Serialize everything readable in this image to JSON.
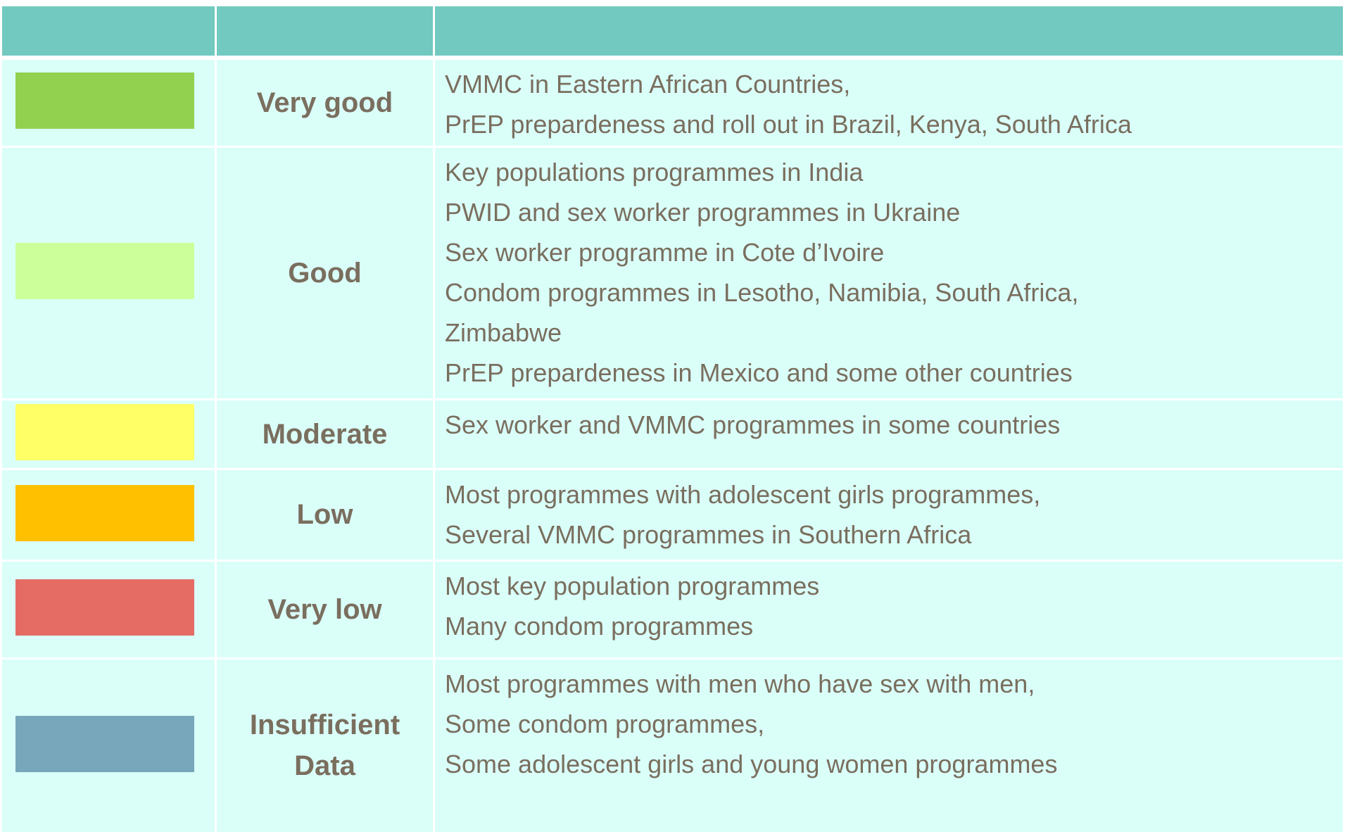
{
  "table": {
    "rows": [
      {
        "color": "#92d050",
        "rating": "Very good",
        "items": [
          "VMMC in Eastern African Countries,",
          "PrEP prepardeness and roll out in Brazil, Kenya, South Africa"
        ]
      },
      {
        "color": "#ccff99",
        "rating": "Good",
        "items": [
          "Key populations programmes in India",
          "PWID and sex worker programmes in Ukraine",
          "Sex worker programme in Cote d’Ivoire",
          "Condom programmes in Lesotho, Namibia, South Africa,",
          "Zimbabwe",
          "PrEP prepardeness in Mexico and some other countries"
        ]
      },
      {
        "color": "#ffff66",
        "rating": "Moderate",
        "items": [
          "Sex worker and VMMC programmes in some countries"
        ]
      },
      {
        "color": "#ffc000",
        "rating": "Low",
        "items": [
          "Most programmes with adolescent girls programmes,",
          "Several VMMC programmes in Southern Africa"
        ]
      },
      {
        "color": "#e46c64",
        "rating": "Very low",
        "items": [
          "Most key population programmes",
          "Many condom programmes"
        ]
      },
      {
        "color": "#78a6ba",
        "rating": "Insufficient Data",
        "items": [
          "Most programmes with men who have sex with men,",
          "Some condom programmes,",
          "Some adolescent girls and young women programmes"
        ]
      }
    ]
  }
}
